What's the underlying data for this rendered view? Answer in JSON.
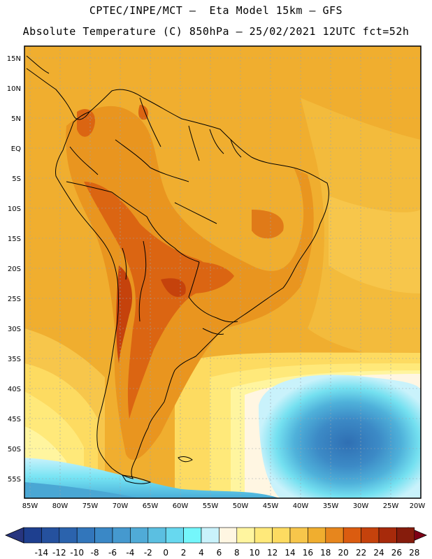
{
  "header": {
    "line1": "CPTEC/INPE/MCT –  Eta Model 15km – GFS",
    "line2": "Absolute Temperature (C) 850hPa – 25/02/2021 12UTC fct=52h"
  },
  "map": {
    "lat_labels": [
      "15N",
      "10N",
      "5N",
      "EQ",
      "5S",
      "10S",
      "15S",
      "20S",
      "25S",
      "30S",
      "35S",
      "40S",
      "45S",
      "50S",
      "55S"
    ],
    "lon_labels": [
      "85W",
      "80W",
      "75W",
      "70W",
      "65W",
      "60W",
      "55W",
      "50W",
      "45W",
      "40W",
      "35W",
      "30W",
      "25W",
      "20W"
    ]
  },
  "colorbar": {
    "labels": [
      "-14",
      "-12",
      "-10",
      "-8",
      "-6",
      "-4",
      "-2",
      "0",
      "2",
      "4",
      "6",
      "8",
      "10",
      "12",
      "14",
      "16",
      "18",
      "20",
      "22",
      "24",
      "26",
      "28"
    ],
    "colors": [
      "#1e3f8f",
      "#25519e",
      "#2b63ad",
      "#3276bb",
      "#3a88c6",
      "#4599cf",
      "#50abd7",
      "#5bbfe1",
      "#67d8ef",
      "#74f6fb",
      "#c9f2fb",
      "#fff6e2",
      "#fff59f",
      "#ffe97a",
      "#fddb61",
      "#f7c64b",
      "#f0ae2f",
      "#e7861d",
      "#db5c10",
      "#c5420c",
      "#a72a0b",
      "#861c0c"
    ],
    "low_arrow_color": "#27357f",
    "high_arrow_color": "#7e0016"
  }
}
